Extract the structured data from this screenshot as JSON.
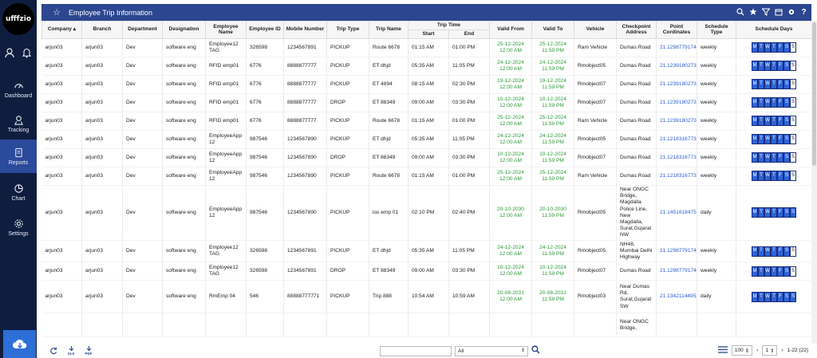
{
  "app": {
    "logo_text": "ufffzio"
  },
  "sidebar": {
    "items": [
      {
        "label": "Dashboard",
        "icon": "dashboard-icon"
      },
      {
        "label": "Tracking",
        "icon": "tracking-icon"
      },
      {
        "label": "Reports",
        "icon": "reports-icon",
        "active": true
      },
      {
        "label": "Chart",
        "icon": "chart-icon"
      },
      {
        "label": "Settings",
        "icon": "settings-icon"
      }
    ]
  },
  "header": {
    "title": "Employee Trip Information"
  },
  "table": {
    "columns": {
      "company": "Company",
      "branch": "Branch",
      "department": "Department",
      "designation": "Designation",
      "employee_name": "Employee Name",
      "employee_id": "Employee ID",
      "mobile": "Mobile Number",
      "trip_type": "Trip Type",
      "trip_name": "Trip Name",
      "trip_time": "Trip Time",
      "start": "Start",
      "end": "End",
      "valid_from": "Valid From",
      "valid_to": "Valid To",
      "vehicle": "Vehicle",
      "checkpoint": "Checkpoint Address",
      "point": "Point Cordinates",
      "schedule_type": "Schedule Type",
      "schedule_days": "Schedule Days"
    },
    "rows": [
      {
        "company": "arjun03",
        "branch": "arjun03",
        "department": "Dev",
        "designation": "software eng",
        "employee_name": "Employee12 TAG",
        "employee_id": "326598",
        "mobile": "1234567891",
        "trip_type": "PICKUP",
        "trip_name": "Route 6678",
        "start": "01:15 AM",
        "end": "01:00 PM",
        "valid_from": "25-12-2024 12:00 AM",
        "valid_to": "25-12-2024 11:59 PM",
        "vehicle": "Ram Vehicle",
        "checkpoint": "Dumas Road",
        "point": "21.12987791749",
        "schedule_type": "weekly",
        "days": [
          "M",
          "T",
          "W",
          "T",
          "F",
          "S",
          "S"
        ],
        "days_on": [
          1,
          1,
          1,
          1,
          1,
          1,
          0
        ]
      },
      {
        "company": "arjun03",
        "branch": "arjun03",
        "department": "Dev",
        "designation": "software eng",
        "employee_name": "RFID emp01",
        "employee_id": "6776",
        "mobile": "8888877777",
        "trip_type": "PICKUP",
        "trip_name": "ET dhjd",
        "start": "05:35 AM",
        "end": "11:05 PM",
        "valid_from": "24-12-2024 12:00 AM",
        "valid_to": "24-12-2024 11:59 PM",
        "vehicle": "Rmobject05",
        "checkpoint": "Dumas Road",
        "point": "21.12391802733",
        "schedule_type": "weekly",
        "days": [
          "M",
          "T",
          "W",
          "T",
          "F",
          "S",
          "S"
        ],
        "days_on": [
          1,
          1,
          1,
          1,
          1,
          1,
          0
        ]
      },
      {
        "company": "arjun03",
        "branch": "arjun03",
        "department": "Dev",
        "designation": "software eng",
        "employee_name": "RFID emp01",
        "employee_id": "6776",
        "mobile": "8888877777",
        "trip_type": "PICKUP",
        "trip_name": "ET 4894",
        "start": "08:15 AM",
        "end": "02:30 PM",
        "valid_from": "19-12-2024 12:00 AM",
        "valid_to": "19-12-2024 11:59 PM",
        "vehicle": "Rmobject07",
        "checkpoint": "Dumas Road",
        "point": "21.12391802733",
        "schedule_type": "weekly",
        "days": [
          "M",
          "T",
          "W",
          "T",
          "F",
          "S",
          "S"
        ],
        "days_on": [
          1,
          1,
          1,
          1,
          1,
          1,
          0
        ]
      },
      {
        "company": "arjun03",
        "branch": "arjun03",
        "department": "Dev",
        "designation": "software eng",
        "employee_name": "RFID emp01",
        "employee_id": "6776",
        "mobile": "8888877777",
        "trip_type": "DROP",
        "trip_name": "ET 88349",
        "start": "09:00 AM",
        "end": "03:30 PM",
        "valid_from": "10-12-2024 12:00 AM",
        "valid_to": "10-12-2024 11:59 PM",
        "vehicle": "Rmobject07",
        "checkpoint": "Dumas Road",
        "point": "21.12391802733",
        "schedule_type": "weekly",
        "days": [
          "M",
          "T",
          "W",
          "T",
          "F",
          "S",
          "S"
        ],
        "days_on": [
          1,
          1,
          1,
          1,
          1,
          1,
          0
        ]
      },
      {
        "company": "arjun03",
        "branch": "arjun03",
        "department": "Dev",
        "designation": "software eng",
        "employee_name": "RFID emp01",
        "employee_id": "6776",
        "mobile": "8888877777",
        "trip_type": "PICKUP",
        "trip_name": "Route 6678",
        "start": "01:15 AM",
        "end": "01:00 PM",
        "valid_from": "25-12-2024 12:00 AM",
        "valid_to": "25-12-2024 11:59 PM",
        "vehicle": "Ram Vehicle",
        "checkpoint": "Dumas Road",
        "point": "21.12391802733",
        "schedule_type": "weekly",
        "days": [
          "M",
          "T",
          "W",
          "T",
          "F",
          "S",
          "S"
        ],
        "days_on": [
          1,
          1,
          1,
          1,
          1,
          1,
          0
        ]
      },
      {
        "company": "arjun03",
        "branch": "arjun03",
        "department": "Dev",
        "designation": "software eng",
        "employee_name": "EmployeeApp 12",
        "employee_id": "987546",
        "mobile": "1234567890",
        "trip_type": "PICKUP",
        "trip_name": "ET dhjd",
        "start": "05:35 AM",
        "end": "11:05 PM",
        "valid_from": "24-12-2024 12:00 AM",
        "valid_to": "24-12-2024 11:59 PM",
        "vehicle": "Rmobject05",
        "checkpoint": "Dumas Road",
        "point": "21.12183167732",
        "schedule_type": "weekly",
        "days": [
          "M",
          "T",
          "W",
          "T",
          "F",
          "S",
          "S"
        ],
        "days_on": [
          1,
          1,
          1,
          1,
          1,
          1,
          0
        ]
      },
      {
        "company": "arjun03",
        "branch": "arjun03",
        "department": "Dev",
        "designation": "software eng",
        "employee_name": "EmployeeApp 12",
        "employee_id": "987546",
        "mobile": "1234567890",
        "trip_type": "DROP",
        "trip_name": "ET 88349",
        "start": "09:00 AM",
        "end": "03:30 PM",
        "valid_from": "10-12-2024 12:00 AM",
        "valid_to": "10-12-2024 11:59 PM",
        "vehicle": "Rmobject07",
        "checkpoint": "Dumas Road",
        "point": "21.12183167732",
        "schedule_type": "weekly",
        "days": [
          "M",
          "T",
          "W",
          "T",
          "F",
          "S",
          "S"
        ],
        "days_on": [
          1,
          1,
          1,
          1,
          1,
          1,
          0
        ]
      },
      {
        "company": "arjun03",
        "branch": "arjun03",
        "department": "Dev",
        "designation": "software eng",
        "employee_name": "EmployeeApp 12",
        "employee_id": "987546",
        "mobile": "1234567890",
        "trip_type": "PICKUP",
        "trip_name": "Route 6678",
        "start": "01:15 AM",
        "end": "01:00 PM",
        "valid_from": "25-12-2024 12:00 AM",
        "valid_to": "25-12-2024 11:59 PM",
        "vehicle": "Ram Vehicle",
        "checkpoint": "Dumas Road",
        "point": "21.12183167732",
        "schedule_type": "weekly",
        "days": [
          "M",
          "T",
          "W",
          "T",
          "F",
          "S",
          "S"
        ],
        "days_on": [
          1,
          1,
          1,
          1,
          1,
          1,
          0
        ]
      },
      {
        "company": "arjun03",
        "branch": "arjun03",
        "department": "Dev",
        "designation": "software eng",
        "employee_name": "EmployeeApp 12",
        "employee_id": "987546",
        "mobile": "1234567890",
        "trip_type": "PICKUP",
        "trip_name": "ios emp 01",
        "start": "02:10 PM",
        "end": "02:40 PM",
        "valid_from": "20-10-2030 12:00 AM",
        "valid_to": "20-10-2030 11:59 PM",
        "vehicle": "Rmobject05",
        "checkpoint": "Near ONGC Bridge, Magdalla Police Line, New Magdalla, Surat,Gujarat NW",
        "point": "21.14516184751",
        "schedule_type": "daily",
        "days": [
          "M",
          "T",
          "W",
          "T",
          "F",
          "S",
          "S"
        ],
        "days_on": [
          1,
          1,
          1,
          1,
          1,
          1,
          1
        ]
      },
      {
        "company": "arjun03",
        "branch": "arjun03",
        "department": "Dev",
        "designation": "software eng",
        "employee_name": "Employee12 TAG",
        "employee_id": "326598",
        "mobile": "1234567891",
        "trip_type": "PICKUP",
        "trip_name": "ET dhjd",
        "start": "05:35 AM",
        "end": "11:05 PM",
        "valid_from": "24-12-2024 12:00 AM",
        "valid_to": "24-12-2024 11:59 PM",
        "vehicle": "Rmobject05",
        "checkpoint": "NH48, Mumbai Delhi Highway",
        "point": "21.12987791749",
        "schedule_type": "weekly",
        "days": [
          "M",
          "T",
          "W",
          "T",
          "F",
          "S",
          "S"
        ],
        "days_on": [
          1,
          1,
          1,
          1,
          1,
          1,
          0
        ]
      },
      {
        "company": "arjun03",
        "branch": "arjun03",
        "department": "Dev",
        "designation": "software eng",
        "employee_name": "Employee12 TAG",
        "employee_id": "326598",
        "mobile": "1234567891",
        "trip_type": "DROP",
        "trip_name": "ET 88349",
        "start": "09:00 AM",
        "end": "03:30 PM",
        "valid_from": "10-12-2024 12:00 AM",
        "valid_to": "10-12-2024 11:59 PM",
        "vehicle": "Rmobject07",
        "checkpoint": "Dumas Road",
        "point": "21.12987791749",
        "schedule_type": "weekly",
        "days": [
          "M",
          "T",
          "W",
          "T",
          "F",
          "S",
          "S"
        ],
        "days_on": [
          1,
          1,
          1,
          1,
          1,
          1,
          0
        ]
      },
      {
        "company": "arjun03",
        "branch": "arjun03",
        "department": "Dev",
        "designation": "software eng",
        "employee_name": "RmEmp 04",
        "employee_id": "546",
        "mobile": "88888777771",
        "trip_type": "PICKUP",
        "trip_name": "Trip 888",
        "start": "10:54 AM",
        "end": "10:59 AM",
        "valid_from": "20-08-2031 12:00 AM",
        "valid_to": "20-08-2031 11:59 PM",
        "vehicle": "Rmobject03",
        "checkpoint": "Near Dumas Rd, Surat,Gujarat SW",
        "point": "21.13421144952",
        "schedule_type": "daily",
        "days": [
          "M",
          "T",
          "W",
          "T",
          "F",
          "S",
          "S"
        ],
        "days_on": [
          1,
          1,
          1,
          1,
          1,
          1,
          1
        ]
      },
      {
        "company": "",
        "branch": "",
        "department": "",
        "designation": "",
        "employee_name": "",
        "employee_id": "",
        "mobile": "",
        "trip_type": "",
        "trip_name": "",
        "start": "",
        "end": "",
        "valid_from": "",
        "valid_to": "",
        "vehicle": "",
        "checkpoint": "Near ONGC Bridge,",
        "point": "",
        "schedule_type": "",
        "days": [],
        "days_on": []
      }
    ]
  },
  "footer": {
    "xls_label": "XLS",
    "pdf_label": "PDF",
    "filter_value": "All",
    "page_size": "100",
    "page": "1",
    "range": "1-22 (22)"
  },
  "colors": {
    "sidebar": "#0f1d3f",
    "header": "#2c468f",
    "day_on": "#2d63d8",
    "date_green": "#2e9a3b",
    "link": "#2a5bd7"
  }
}
